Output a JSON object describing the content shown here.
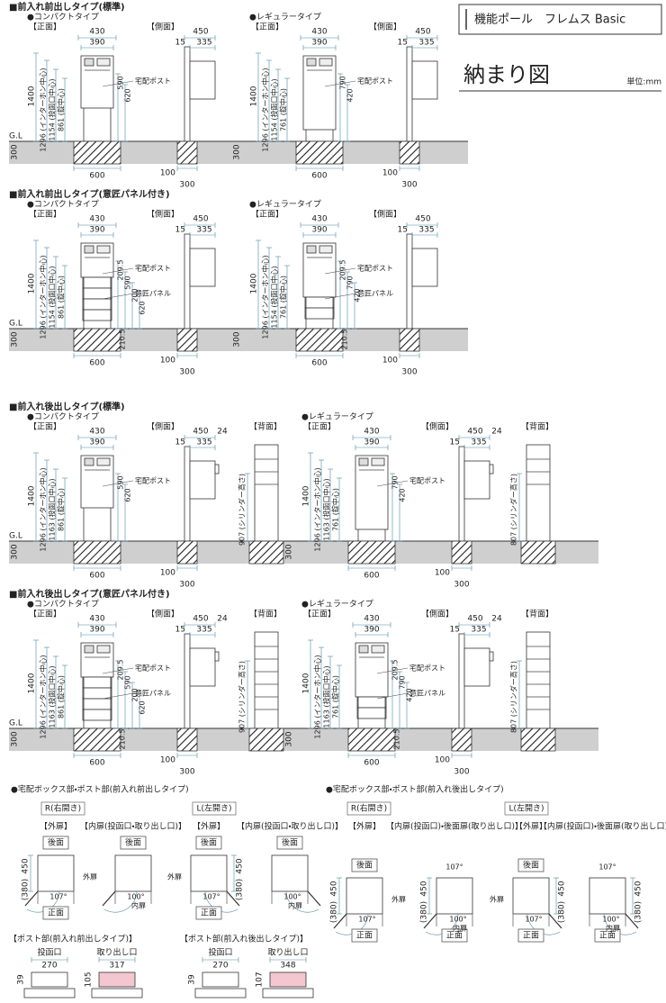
{
  "header": {
    "title": "機能ポール　フレムス Basic",
    "subtitle": "納まり図",
    "unit": "単位:mm"
  },
  "sections": [
    {
      "title": "■前入れ前出しタイプ(標準)",
      "panels": [
        {
          "type": "●コンパクトタイプ",
          "front": "【正面】",
          "side": "【側面】",
          "gl": "G.L",
          "w": [
            "430",
            "390"
          ],
          "height": "1400",
          "dims": [
            "1296 (インターホン中心)",
            "1154 (投函口中心)",
            "861 (錠中心)"
          ],
          "right": [
            "590",
            "620"
          ],
          "notes": [
            "宅配ポスト"
          ],
          "ground": "300",
          "base": "600",
          "side_top": {
            "total": "450",
            "offset": "15",
            "depth": "335"
          },
          "side_base": [
            "100",
            "300"
          ]
        },
        {
          "type": "●レギュラータイプ",
          "front": "【正面】",
          "side": "【側面】",
          "w": [
            "430",
            "390"
          ],
          "height": "1400",
          "dims": [
            "1296 (インターホン中心)",
            "1154 (投函口中心)",
            "761 (錠中心)"
          ],
          "right": [
            "790",
            "420"
          ],
          "notes": [
            "宅配ポスト"
          ],
          "ground": "300",
          "base": "600",
          "side_top": {
            "total": "450",
            "offset": "15",
            "depth": "335"
          },
          "side_base": [
            "100",
            "300"
          ]
        }
      ]
    },
    {
      "title": "■前入れ前出しタイプ(意匠パネル付き)",
      "panels": [
        {
          "type": "●コンパクトタイプ",
          "front": "【正面】",
          "side": "【側面】",
          "gl": "G.L",
          "w": [
            "430",
            "390"
          ],
          "height": "1400",
          "dims": [
            "1296 (インターホン中心)",
            "1154 (投函口中心)",
            "861 (錠中心)"
          ],
          "right": [
            "209.5",
            "590",
            "200",
            "620"
          ],
          "notes": [
            "宅配ポスト",
            "意匠パネル"
          ],
          "foot": "210.5",
          "ground": "300",
          "base": "600",
          "side_top": {
            "total": "450",
            "offset": "15",
            "depth": "335"
          },
          "side_base": [
            "100",
            "300"
          ]
        },
        {
          "type": "●レギュラータイプ",
          "front": "【正面】",
          "side": "【側面】",
          "w": [
            "430",
            "390"
          ],
          "height": "1400",
          "dims": [
            "1296 (インターホン中心)",
            "1154 (投函口中心)",
            "761 (錠中心)"
          ],
          "right": [
            "209.5",
            "790",
            "420"
          ],
          "notes": [
            "宅配ポスト",
            "意匠パネル"
          ],
          "foot": "210.5",
          "ground": "300",
          "base": "600",
          "side_top": {
            "total": "450",
            "offset": "15",
            "depth": "335"
          },
          "side_base": [
            "100",
            "300"
          ]
        }
      ]
    },
    {
      "title": "■前入れ後出しタイプ(標準)",
      "panels": [
        {
          "type": "●コンパクトタイプ",
          "front": "【正面】",
          "side": "【側面】",
          "back": "【背面】",
          "gl": "G.L",
          "w": [
            "430",
            "390"
          ],
          "height": "1400",
          "dims": [
            "1296 (インターホン中心)",
            "1163 (投函口中心)",
            "861 (錠中心)"
          ],
          "right": [
            "590",
            "620"
          ],
          "notes": [
            "宅配ポスト"
          ],
          "ground": "300",
          "base": "600",
          "side_top": {
            "total": "450",
            "offset": "15",
            "depth": "335",
            "rear": "24"
          },
          "side_base": [
            "100",
            "300"
          ],
          "back_dim": "907 (シリンダー高さ)"
        },
        {
          "type": "●レギュラータイプ",
          "front": "【正面】",
          "side": "【側面】",
          "back": "【背面】",
          "w": [
            "430",
            "390"
          ],
          "height": "1400",
          "dims": [
            "1296 (インターホン中心)",
            "1163 (投函口中心)",
            "761 (錠中心)"
          ],
          "right": [
            "790",
            "420"
          ],
          "notes": [
            "宅配ポスト"
          ],
          "ground": "300",
          "base": "600",
          "side_top": {
            "total": "450",
            "offset": "15",
            "depth": "335",
            "rear": "24"
          },
          "side_base": [
            "100",
            "300"
          ],
          "back_dim": "807 (シリンダー高さ)"
        }
      ]
    },
    {
      "title": "■前入れ後出しタイプ(意匠パネル付き)",
      "panels": [
        {
          "type": "●コンパクトタイプ",
          "front": "【正面】",
          "side": "【側面】",
          "back": "【背面】",
          "gl": "G.L",
          "w": [
            "430",
            "390"
          ],
          "height": "1400",
          "dims": [
            "1296 (インターホン中心)",
            "1163 (投函口中心)",
            "861 (錠中心)"
          ],
          "right": [
            "209.5",
            "590",
            "200",
            "620"
          ],
          "notes": [
            "宅配ポスト",
            "意匠パネル"
          ],
          "foot": "210.5",
          "ground": "300",
          "base": "600",
          "side_top": {
            "total": "450",
            "offset": "15",
            "depth": "335",
            "rear": "24"
          },
          "side_base": [
            "100",
            "300"
          ],
          "back_dim": "907 (シリンダー高さ)"
        },
        {
          "type": "●レギュラータイプ",
          "front": "【正面】",
          "side": "【側面】",
          "back": "【背面】",
          "w": [
            "430",
            "390"
          ],
          "height": "1400",
          "dims": [
            "1296 (インターホン中心)",
            "1163 (投函口中心)",
            "761 (錠中心)"
          ],
          "right": [
            "209.5",
            "790",
            "420"
          ],
          "notes": [
            "宅配ポスト",
            "意匠パネル"
          ],
          "foot": "210.5",
          "ground": "300",
          "base": "600",
          "side_top": {
            "total": "450",
            "offset": "15",
            "depth": "335",
            "rear": "24"
          },
          "side_base": [
            "100",
            "300"
          ],
          "back_dim": "807 (シリンダー高さ)"
        }
      ]
    }
  ],
  "boxes": [
    {
      "title": "●宅配ボックス部・ポスト部(前入れ前出しタイプ)",
      "openings": [
        {
          "label": "R(右開き)",
          "outer": {
            "label": "【外扉】",
            "rear": "後面",
            "front": "正面",
            "depth": "450",
            "inner": "(380)",
            "angle": "107°",
            "door": "外扉"
          },
          "inner": {
            "label": "【内扉(投函口・取り出し口)】",
            "rear": "後面",
            "angle": "100°",
            "door": "内扉"
          }
        },
        {
          "label": "L(左開き)",
          "outer": {
            "label": "【外扉】",
            "rear": "後面",
            "front": "正面",
            "depth": "450",
            "inner": "(380)",
            "angle": "107°",
            "door": "外扉"
          },
          "inner": {
            "label": "【内扉(投函口・取り出し口)】",
            "rear": "後面",
            "angle": "100°",
            "door": "内扉"
          }
        }
      ]
    },
    {
      "title": "●宅配ボックス部・ポスト部(前入れ後出しタイプ)",
      "openings": [
        {
          "label": "R(右開き)",
          "outer": {
            "label": "【外扉】",
            "rear": "後面",
            "front": "正面",
            "depth": "450",
            "inner": "(380)",
            "angle": "107°",
            "door": "外扉"
          },
          "inner": {
            "label": "【内扉(投函口)・後面扉(取り出し口)】",
            "front": "正面",
            "depth": "450",
            "inner": "(380)",
            "angle": "107°",
            "angle2": "100°",
            "door": "内扉"
          }
        },
        {
          "label": "L(左開き)",
          "outer": {
            "label": "【外扉】",
            "rear": "後面",
            "front": "正面",
            "depth": "450",
            "inner": "(380)",
            "angle": "107°",
            "door": "外扉"
          },
          "inner": {
            "label": "【内扉(投函口)・後面扉(取り出し口)】",
            "front": "正面",
            "depth": "450",
            "inner": "(380)",
            "angle": "107°",
            "angle2": "100°",
            "door": "内扉"
          }
        }
      ]
    }
  ],
  "posts": [
    {
      "title": "【ポスト部(前入れ前出しタイプ)】",
      "slot": {
        "label": "投函口",
        "width": "270",
        "height": "39"
      },
      "outlet": {
        "label": "取り出し口",
        "width": "317",
        "height": "105"
      }
    },
    {
      "title": "【ポスト部(前入れ後出しタイプ)】",
      "slot": {
        "label": "投函口",
        "width": "270",
        "height": "39"
      },
      "outlet": {
        "label": "取り出し口",
        "width": "348",
        "height": "107"
      }
    }
  ]
}
